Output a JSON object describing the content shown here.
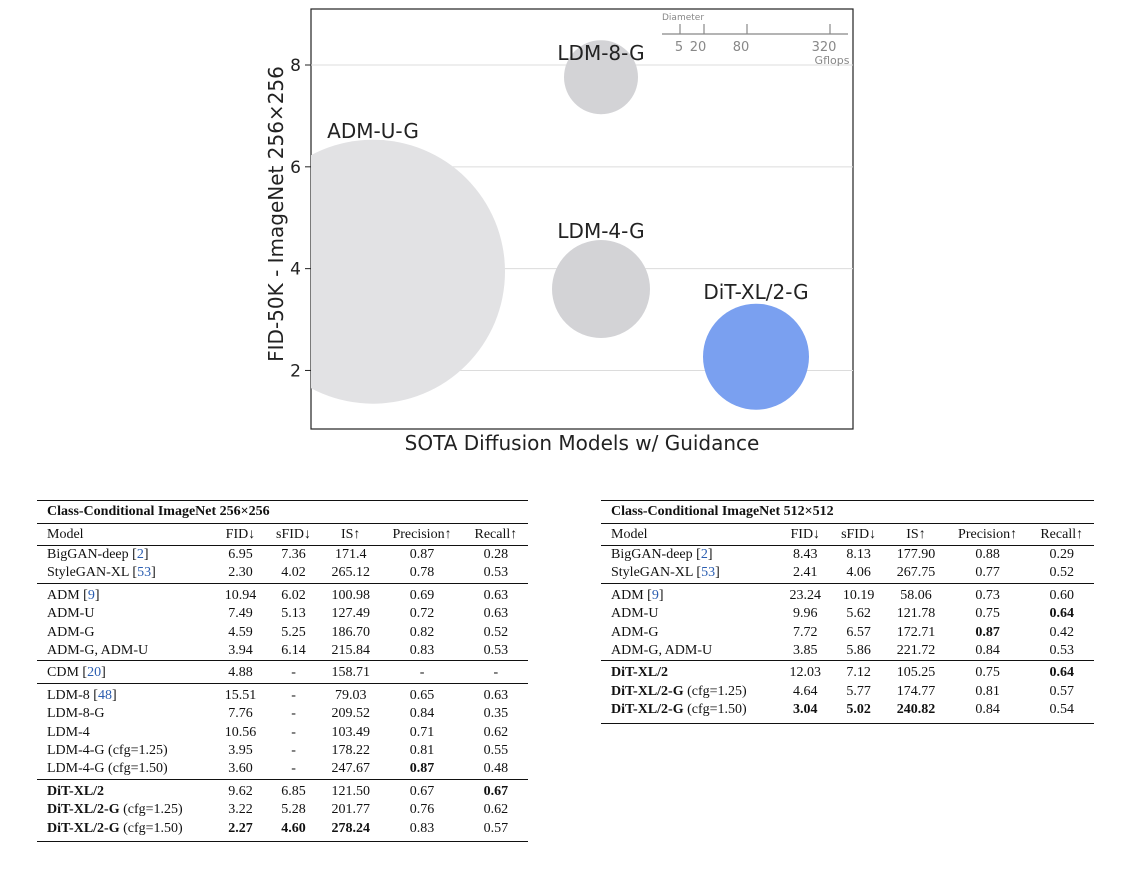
{
  "chart_data": {
    "type": "bubble",
    "xlabel": "SOTA Diffusion Models w/ Guidance",
    "ylabel": "FID-50K - ImageNet 256×256",
    "ylim": [
      0.85,
      9.1
    ],
    "yticks": [
      2,
      4,
      6,
      8
    ],
    "grid": true,
    "bubbles": [
      {
        "label": "ADM-U-G",
        "fid": 3.94,
        "color": "#e2e2e4"
      },
      {
        "label": "LDM-8-G",
        "fid": 7.76,
        "color": "#d3d3d6"
      },
      {
        "label": "LDM-4-G",
        "fid": 3.6,
        "color": "#d3d3d6"
      },
      {
        "label": "DiT-XL/2-G",
        "fid": 2.27,
        "color": "#7aa0f0"
      }
    ],
    "diameter_legend": {
      "title": "Diameter",
      "values": [
        5,
        20,
        80,
        320
      ],
      "unit": "Gflops"
    }
  },
  "table256": {
    "caption": "Class-Conditional ImageNet 256×256",
    "headers": [
      "Model",
      "FID↓",
      "sFID↓",
      "IS↑",
      "Precision↑",
      "Recall↑"
    ],
    "groups": [
      [
        {
          "model": "BigGAN-deep",
          "ref": "2",
          "fid": "6.95",
          "sfid": "7.36",
          "is": "171.4",
          "prec": "0.87",
          "rec": "0.28"
        },
        {
          "model": "StyleGAN-XL",
          "ref": "53",
          "fid": "2.30",
          "sfid": "4.02",
          "is": "265.12",
          "prec": "0.78",
          "rec": "0.53"
        }
      ],
      [
        {
          "model": "ADM",
          "ref": "9",
          "fid": "10.94",
          "sfid": "6.02",
          "is": "100.98",
          "prec": "0.69",
          "rec": "0.63"
        },
        {
          "model": "ADM-U",
          "fid": "7.49",
          "sfid": "5.13",
          "is": "127.49",
          "prec": "0.72",
          "rec": "0.63"
        },
        {
          "model": "ADM-G",
          "fid": "4.59",
          "sfid": "5.25",
          "is": "186.70",
          "prec": "0.82",
          "rec": "0.52"
        },
        {
          "model": "ADM-G, ADM-U",
          "fid": "3.94",
          "sfid": "6.14",
          "is": "215.84",
          "prec": "0.83",
          "rec": "0.53"
        }
      ],
      [
        {
          "model": "CDM",
          "ref": "20",
          "fid": "4.88",
          "sfid": "-",
          "is": "158.71",
          "prec": "-",
          "rec": "-"
        }
      ],
      [
        {
          "model": "LDM-8",
          "ref": "48",
          "fid": "15.51",
          "sfid": "-",
          "is": "79.03",
          "prec": "0.65",
          "rec": "0.63"
        },
        {
          "model": "LDM-8-G",
          "fid": "7.76",
          "sfid": "-",
          "is": "209.52",
          "prec": "0.84",
          "rec": "0.35"
        },
        {
          "model": "LDM-4",
          "fid": "10.56",
          "sfid": "-",
          "is": "103.49",
          "prec": "0.71",
          "rec": "0.62"
        },
        {
          "model": "LDM-4-G",
          "suffix": " (cfg=1.25)",
          "fid": "3.95",
          "sfid": "-",
          "is": "178.22",
          "prec": "0.81",
          "rec": "0.55"
        },
        {
          "model": "LDM-4-G",
          "suffix": " (cfg=1.50)",
          "fid": "3.60",
          "sfid": "-",
          "is": "247.67",
          "prec": "0.87",
          "rec": "0.48",
          "bold": [
            "prec"
          ]
        }
      ],
      [
        {
          "model": "DiT-XL/2",
          "boldModel": true,
          "fid": "9.62",
          "sfid": "6.85",
          "is": "121.50",
          "prec": "0.67",
          "rec": "0.67",
          "bold": [
            "rec"
          ]
        },
        {
          "model": "DiT-XL/2-G",
          "boldModel": true,
          "suffix": " (cfg=1.25)",
          "fid": "3.22",
          "sfid": "5.28",
          "is": "201.77",
          "prec": "0.76",
          "rec": "0.62"
        },
        {
          "model": "DiT-XL/2-G",
          "boldModel": true,
          "suffix": " (cfg=1.50)",
          "fid": "2.27",
          "sfid": "4.60",
          "is": "278.24",
          "prec": "0.83",
          "rec": "0.57",
          "bold": [
            "fid",
            "sfid",
            "is"
          ]
        }
      ]
    ]
  },
  "table512": {
    "caption": "Class-Conditional ImageNet 512×512",
    "headers": [
      "Model",
      "FID↓",
      "sFID↓",
      "IS↑",
      "Precision↑",
      "Recall↑"
    ],
    "groups": [
      [
        {
          "model": "BigGAN-deep",
          "ref": "2",
          "fid": "8.43",
          "sfid": "8.13",
          "is": "177.90",
          "prec": "0.88",
          "rec": "0.29"
        },
        {
          "model": "StyleGAN-XL",
          "ref": "53",
          "fid": "2.41",
          "sfid": "4.06",
          "is": "267.75",
          "prec": "0.77",
          "rec": "0.52"
        }
      ],
      [
        {
          "model": "ADM",
          "ref": "9",
          "fid": "23.24",
          "sfid": "10.19",
          "is": "58.06",
          "prec": "0.73",
          "rec": "0.60"
        },
        {
          "model": "ADM-U",
          "fid": "9.96",
          "sfid": "5.62",
          "is": "121.78",
          "prec": "0.75",
          "rec": "0.64",
          "bold": [
            "rec"
          ]
        },
        {
          "model": "ADM-G",
          "fid": "7.72",
          "sfid": "6.57",
          "is": "172.71",
          "prec": "0.87",
          "rec": "0.42",
          "bold": [
            "prec"
          ]
        },
        {
          "model": "ADM-G, ADM-U",
          "fid": "3.85",
          "sfid": "5.86",
          "is": "221.72",
          "prec": "0.84",
          "rec": "0.53"
        }
      ],
      [
        {
          "model": "DiT-XL/2",
          "boldModel": true,
          "fid": "12.03",
          "sfid": "7.12",
          "is": "105.25",
          "prec": "0.75",
          "rec": "0.64",
          "bold": [
            "rec"
          ]
        },
        {
          "model": "DiT-XL/2-G",
          "boldModel": true,
          "suffix": " (cfg=1.25)",
          "fid": "4.64",
          "sfid": "5.77",
          "is": "174.77",
          "prec": "0.81",
          "rec": "0.57"
        },
        {
          "model": "DiT-XL/2-G",
          "boldModel": true,
          "suffix": " (cfg=1.50)",
          "fid": "3.04",
          "sfid": "5.02",
          "is": "240.82",
          "prec": "0.84",
          "rec": "0.54",
          "bold": [
            "fid",
            "sfid",
            "is"
          ]
        }
      ]
    ]
  }
}
